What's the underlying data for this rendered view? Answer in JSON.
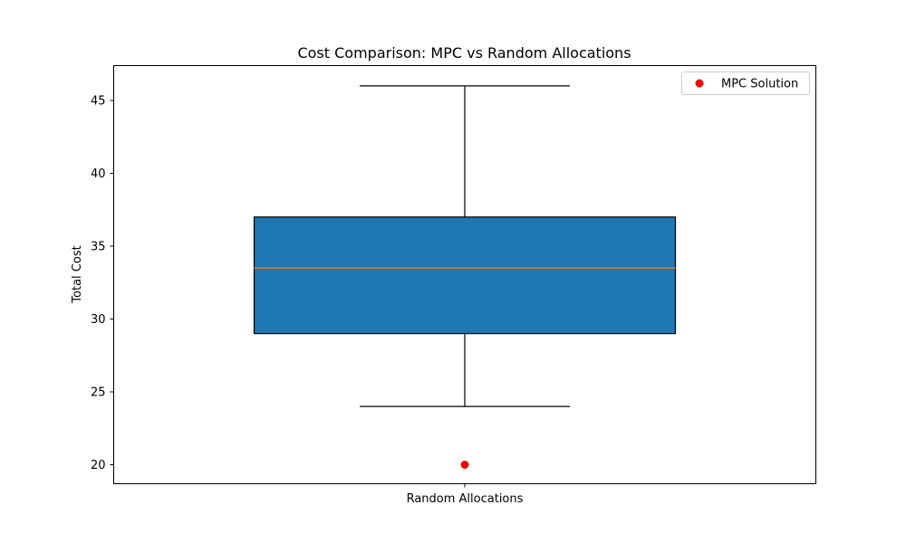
{
  "chart_data": {
    "type": "box",
    "title": "Cost Comparison: MPC vs Random Allocations",
    "xlabel": "",
    "ylabel": "Total Cost",
    "ylim": [
      18.65,
      47.35
    ],
    "yticks": [
      20,
      25,
      30,
      35,
      40,
      45
    ],
    "categories": [
      "Random Allocations"
    ],
    "boxes": [
      {
        "category": "Random Allocations",
        "whisker_low": 24,
        "q1": 29,
        "median": 33.5,
        "q3": 37,
        "whisker_high": 46
      }
    ],
    "points": [
      {
        "series": "MPC Solution",
        "category": "Random Allocations",
        "y": 20
      }
    ],
    "legend": {
      "position": "upper right",
      "entries": [
        "MPC Solution"
      ]
    },
    "grid": false,
    "colors": {
      "box_fill": "#1f77b4",
      "median_line": "#ff7f0e",
      "mpc_point": "#ff0000",
      "axis": "#000000"
    }
  }
}
